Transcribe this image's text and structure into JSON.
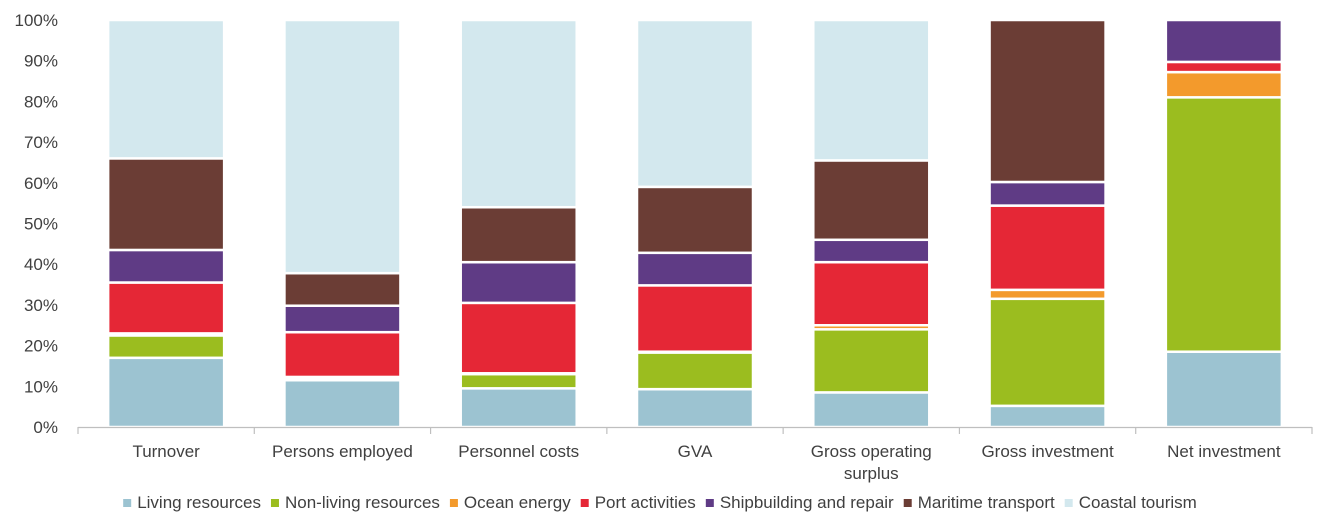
{
  "chart_data": {
    "type": "bar",
    "stacked": true,
    "percent": true,
    "categories": [
      [
        "Turnover"
      ],
      [
        "Persons employed"
      ],
      [
        "Personnel costs"
      ],
      [
        "GVA"
      ],
      [
        "Gross operating",
        "surplus"
      ],
      [
        "Gross investment"
      ],
      [
        "Net investment"
      ]
    ],
    "series": [
      {
        "name": "Living resources",
        "color": "#9cc3d1",
        "values": [
          17,
          11.5,
          9.5,
          9.3,
          8.5,
          5.2,
          18.5
        ]
      },
      {
        "name": "Non-living resources",
        "color": "#9bbd1f",
        "values": [
          5.5,
          0.5,
          3.5,
          9,
          15.5,
          26.3,
          62.5
        ]
      },
      {
        "name": "Ocean energy",
        "color": "#f39a2c",
        "values": [
          0.5,
          0.3,
          0.2,
          0.2,
          1,
          2.2,
          6.2
        ]
      },
      {
        "name": "Port activities",
        "color": "#e52736",
        "values": [
          12.5,
          11,
          17.3,
          16.3,
          15.5,
          20.7,
          2.5
        ]
      },
      {
        "name": "Shipbuilding and repair",
        "color": "#5f3b85",
        "values": [
          8,
          6.5,
          10,
          8,
          5.5,
          5.8,
          10.3
        ]
      },
      {
        "name": "Maritime transport",
        "color": "#6b3d35",
        "values": [
          22.5,
          8,
          13.5,
          16.2,
          19.5,
          39.8,
          0
        ]
      },
      {
        "name": "Coastal tourism",
        "color": "#d3e8ee",
        "values": [
          34,
          62.2,
          46,
          41,
          34.5,
          0,
          0
        ]
      }
    ],
    "ylim": [
      0,
      100
    ],
    "yticks": [
      "0%",
      "10%",
      "20%",
      "30%",
      "40%",
      "50%",
      "60%",
      "70%",
      "80%",
      "90%",
      "100%"
    ],
    "legend_position": "bottom",
    "grid": false,
    "title": "",
    "xlabel": "",
    "ylabel": ""
  }
}
